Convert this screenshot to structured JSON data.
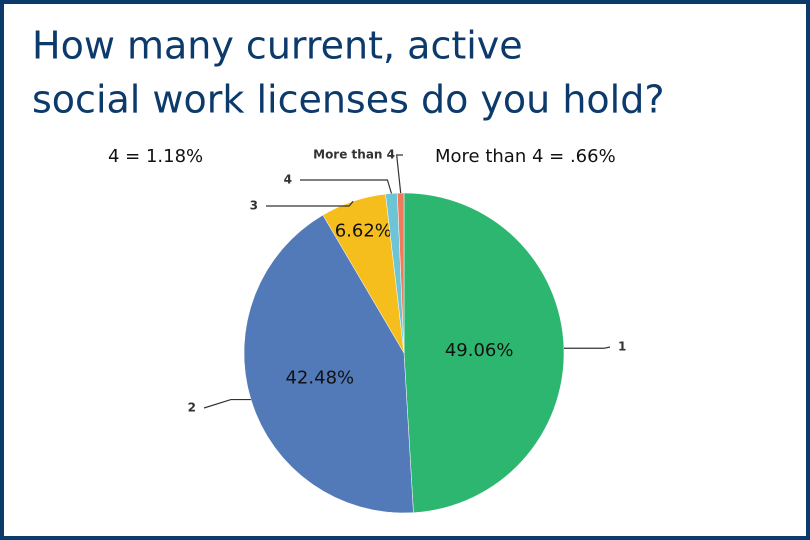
{
  "chart_data": {
    "type": "pie",
    "title_lines": [
      "How many current, active",
      "social work licenses do you hold?"
    ],
    "categories": [
      "1",
      "2",
      "3",
      "4",
      "More than 4"
    ],
    "values": [
      49.06,
      42.48,
      6.62,
      1.18,
      0.66
    ],
    "value_labels": [
      "49.06%",
      "42.48%",
      "6.62%",
      null,
      null
    ],
    "colors": [
      "#2db670",
      "#5279b8",
      "#f5be1c",
      "#6cc4d4",
      "#ef7b5b"
    ],
    "annotations": [
      "4 = 1.18%",
      "More than 4 = .66%"
    ]
  }
}
